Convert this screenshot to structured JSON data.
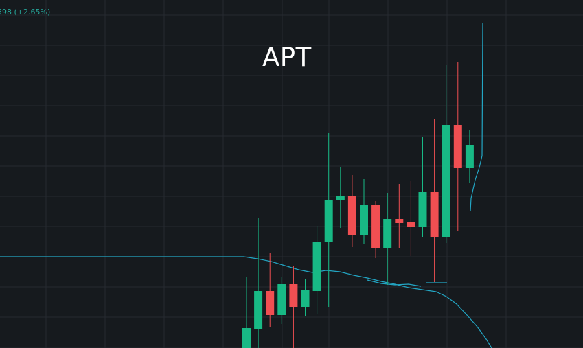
{
  "header": {
    "change_readout": "598 (+2.65%)"
  },
  "colors": {
    "background": "#161a1e",
    "grid": "#262a30",
    "up": "#18b985",
    "down": "#f04f52",
    "ma_line": "#23a6c4",
    "text": "#ffffff",
    "readout": "#26a69a"
  },
  "chart_data": {
    "type": "candlestick",
    "title": "APT",
    "xlabel": "",
    "ylabel": "",
    "grid": true,
    "ylim": [
      0,
      507
    ],
    "candles": [
      {
        "o": 0,
        "h": 104,
        "l": 0,
        "c": 29,
        "dir": "up"
      },
      {
        "o": 27,
        "h": 189,
        "l": 0,
        "c": 83,
        "dir": "up"
      },
      {
        "o": 48,
        "h": 139,
        "l": 31,
        "c": 83,
        "dir": "down"
      },
      {
        "o": 48,
        "h": 103,
        "l": 35,
        "c": 93,
        "dir": "up"
      },
      {
        "o": 60,
        "h": 120,
        "l": 0,
        "c": 93,
        "dir": "down"
      },
      {
        "o": 60,
        "h": 100,
        "l": 47,
        "c": 84,
        "dir": "up"
      },
      {
        "o": 83,
        "h": 178,
        "l": 50,
        "c": 155,
        "dir": "up"
      },
      {
        "o": 155,
        "h": 313,
        "l": 60,
        "c": 216,
        "dir": "up"
      },
      {
        "o": 216,
        "h": 263,
        "l": 175,
        "c": 222,
        "dir": "up"
      },
      {
        "o": 222,
        "h": 252,
        "l": 147,
        "c": 164,
        "dir": "down"
      },
      {
        "o": 164,
        "h": 246,
        "l": 151,
        "c": 209,
        "dir": "up"
      },
      {
        "o": 209,
        "h": 214,
        "l": 131,
        "c": 146,
        "dir": "down"
      },
      {
        "o": 146,
        "h": 226,
        "l": 92,
        "c": 188,
        "dir": "up"
      },
      {
        "o": 188,
        "h": 239,
        "l": 146,
        "c": 182,
        "dir": "down"
      },
      {
        "o": 184,
        "h": 244,
        "l": 134,
        "c": 176,
        "dir": "down"
      },
      {
        "o": 176,
        "h": 307,
        "l": 161,
        "c": 228,
        "dir": "up"
      },
      {
        "o": 228,
        "h": 333,
        "l": 96,
        "c": 162,
        "dir": "down"
      },
      {
        "o": 162,
        "h": 413,
        "l": 153,
        "c": 325,
        "dir": "up"
      },
      {
        "o": 325,
        "h": 417,
        "l": 171,
        "c": 262,
        "dir": "down"
      },
      {
        "o": 262,
        "h": 318,
        "l": 241,
        "c": 296,
        "dir": "up"
      }
    ],
    "lines": [
      {
        "points": [
          [
            0,
            133
          ],
          [
            355,
            133
          ],
          [
            375,
            130
          ],
          [
            395,
            126
          ],
          [
            415,
            120
          ],
          [
            435,
            114
          ],
          [
            455,
            110
          ],
          [
            475,
            113
          ],
          [
            495,
            111
          ],
          [
            515,
            106
          ],
          [
            535,
            102
          ],
          [
            555,
            97
          ],
          [
            575,
            93
          ],
          [
            595,
            88
          ],
          [
            615,
            85
          ],
          [
            635,
            82
          ],
          [
            650,
            75
          ],
          [
            665,
            64
          ],
          [
            680,
            48
          ],
          [
            695,
            31
          ],
          [
            708,
            13
          ],
          [
            716,
            0
          ]
        ]
      },
      {
        "points": [
          [
            535,
            99
          ],
          [
            555,
            94
          ],
          [
            575,
            92
          ],
          [
            595,
            93
          ],
          [
            613,
            90
          ]
        ]
      },
      {
        "points": [
          [
            621,
            95
          ],
          [
            651,
            95
          ]
        ]
      },
      {
        "points": [
          [
            685,
            199
          ],
          [
            686,
            218
          ],
          [
            692,
            245
          ],
          [
            698,
            263
          ],
          [
            702,
            280
          ],
          [
            703,
            474
          ]
        ]
      }
    ]
  }
}
